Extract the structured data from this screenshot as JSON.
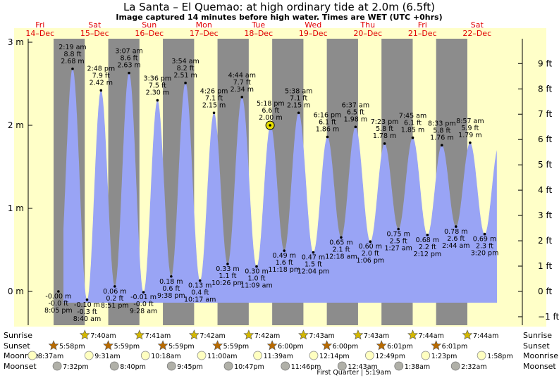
{
  "title": "La Santa – El Quemao: at high  ordinary tide at 2.0m (6.5ft)",
  "subtitle": "Image captured 14 minutes before high water. Times are WET (UTC +0hrs)",
  "days": [
    {
      "dow": "Fri",
      "date": "14–Dec"
    },
    {
      "dow": "Sat",
      "date": "15–Dec"
    },
    {
      "dow": "Sun",
      "date": "16–Dec"
    },
    {
      "dow": "Mon",
      "date": "17–Dec"
    },
    {
      "dow": "Tue",
      "date": "18–Dec"
    },
    {
      "dow": "Wed",
      "date": "19–Dec"
    },
    {
      "dow": "Thu",
      "date": "20–Dec"
    },
    {
      "dow": "Fri",
      "date": "21–Dec"
    },
    {
      "dow": "Sat",
      "date": "22–Dec"
    }
  ],
  "chart_data": {
    "type": "area",
    "unit_left": "m",
    "unit_right": "ft",
    "y_left_ticks": [
      "0 m",
      "1 m",
      "2 m",
      "3 m"
    ],
    "y_right_ticks": [
      "−1 ft",
      "0 ft",
      "1 ft",
      "2 ft",
      "3 ft",
      "4 ft",
      "5 ft",
      "6 ft",
      "7 ft",
      "8 ft",
      "9 ft"
    ],
    "ylim_m": [
      -0.5,
      3.0
    ],
    "x_start": "14-Dec 00:00",
    "colors": {
      "day": "#ffffc8",
      "night": "#8c8c8c",
      "water": "#99a4f5",
      "frame": "#ffffc8"
    },
    "extremes": [
      {
        "type": "low",
        "date": "14-Dec",
        "time": "8:05 pm",
        "m": "-0.00 m",
        "ft": "-0.0 ft"
      },
      {
        "type": "high",
        "date": "15-Dec",
        "time": "2:19 am",
        "m": "2.68 m",
        "ft": "8.8 ft"
      },
      {
        "type": "low",
        "date": "15-Dec",
        "time": "8:40 am",
        "m": "-0.10 m",
        "ft": "-0.3 ft"
      },
      {
        "type": "high",
        "date": "15-Dec",
        "time": "2:48 pm",
        "m": "2.42 m",
        "ft": "7.9 ft"
      },
      {
        "type": "low",
        "date": "15-Dec",
        "time": "8:51 pm",
        "m": "0.06 m",
        "ft": "0.2 ft"
      },
      {
        "type": "high",
        "date": "16-Dec",
        "time": "3:07 am",
        "m": "2.63 m",
        "ft": "8.6 ft"
      },
      {
        "type": "low",
        "date": "16-Dec",
        "time": "9:28 am",
        "m": "-0.01 m",
        "ft": "-0.0 ft"
      },
      {
        "type": "high",
        "date": "16-Dec",
        "time": "3:36 pm",
        "m": "2.30 m",
        "ft": "7.5 ft"
      },
      {
        "type": "low",
        "date": "16-Dec",
        "time": "9:38 pm",
        "m": "0.18 m",
        "ft": "0.6 ft"
      },
      {
        "type": "high",
        "date": "17-Dec",
        "time": "3:54 am",
        "m": "2.51 m",
        "ft": "8.2 ft"
      },
      {
        "type": "low",
        "date": "17-Dec",
        "time": "10:17 am",
        "m": "0.13 m",
        "ft": "0.4 ft"
      },
      {
        "type": "high",
        "date": "17-Dec",
        "time": "4:26 pm",
        "m": "2.15 m",
        "ft": "7.1 ft"
      },
      {
        "type": "low",
        "date": "17-Dec",
        "time": "10:26 pm",
        "m": "0.33 m",
        "ft": "1.1 ft"
      },
      {
        "type": "high",
        "date": "18-Dec",
        "time": "4:44 am",
        "m": "2.34 m",
        "ft": "7.7 ft"
      },
      {
        "type": "low",
        "date": "18-Dec",
        "time": "11:09 am",
        "m": "0.30 m",
        "ft": "1.0 ft"
      },
      {
        "type": "high",
        "date": "18-Dec",
        "time": "5:18 pm",
        "m": "2.00 m",
        "ft": "6.6 ft"
      },
      {
        "type": "low",
        "date": "18-Dec",
        "time": "11:18 pm",
        "m": "0.49 m",
        "ft": "1.6 ft"
      },
      {
        "type": "high",
        "date": "19-Dec",
        "time": "5:38 am",
        "m": "2.15 m",
        "ft": "7.1 ft"
      },
      {
        "type": "low",
        "date": "19-Dec",
        "time": "12:04 pm",
        "m": "0.47 m",
        "ft": "1.5 ft"
      },
      {
        "type": "high",
        "date": "19-Dec",
        "time": "6:16 pm",
        "m": "1.86 m",
        "ft": "6.1 ft"
      },
      {
        "type": "low",
        "date": "20-Dec",
        "time": "12:18 am",
        "m": "0.65 m",
        "ft": "2.1 ft"
      },
      {
        "type": "high",
        "date": "20-Dec",
        "time": "6:37 am",
        "m": "1.98 m",
        "ft": "6.5 ft"
      },
      {
        "type": "low",
        "date": "20-Dec",
        "time": "1:06 pm",
        "m": "0.60 m",
        "ft": "2.0 ft"
      },
      {
        "type": "high",
        "date": "20-Dec",
        "time": "7:23 pm",
        "m": "1.78 m",
        "ft": "5.8 ft"
      },
      {
        "type": "low",
        "date": "21-Dec",
        "time": "1:27 am",
        "m": "0.75 m",
        "ft": "2.5 ft"
      },
      {
        "type": "high",
        "date": "21-Dec",
        "time": "7:45 am",
        "m": "1.85 m",
        "ft": "6.1 ft"
      },
      {
        "type": "low",
        "date": "21-Dec",
        "time": "2:12 pm",
        "m": "0.68 m",
        "ft": "2.2 ft"
      },
      {
        "type": "high",
        "date": "21-Dec",
        "time": "8:33 pm",
        "m": "1.76 m",
        "ft": "5.8 ft"
      },
      {
        "type": "low",
        "date": "22-Dec",
        "time": "2:44 am",
        "m": "0.78 m",
        "ft": "2.6 ft"
      },
      {
        "type": "high",
        "date": "22-Dec",
        "time": "8:57 am",
        "m": "1.79 m",
        "ft": "5.9 ft"
      },
      {
        "type": "low",
        "date": "22-Dec",
        "time": "3:20 pm",
        "m": "0.69 m",
        "ft": "2.3 ft"
      }
    ],
    "current": {
      "date": "18-Dec",
      "time": "5:04 pm",
      "m": 2.0
    },
    "sunrise": [
      {
        "date": "15-Dec",
        "time": "7:40am"
      },
      {
        "date": "16-Dec",
        "time": "7:41am"
      },
      {
        "date": "17-Dec",
        "time": "7:42am"
      },
      {
        "date": "18-Dec",
        "time": "7:42am"
      },
      {
        "date": "19-Dec",
        "time": "7:43am"
      },
      {
        "date": "20-Dec",
        "time": "7:43am"
      },
      {
        "date": "21-Dec",
        "time": "7:44am"
      },
      {
        "date": "22-Dec",
        "time": "7:44am"
      }
    ],
    "sunset": [
      {
        "date": "14-Dec",
        "time": "5:58pm"
      },
      {
        "date": "15-Dec",
        "time": "5:59pm"
      },
      {
        "date": "16-Dec",
        "time": "5:59pm"
      },
      {
        "date": "17-Dec",
        "time": "5:59pm"
      },
      {
        "date": "18-Dec",
        "time": "6:00pm"
      },
      {
        "date": "19-Dec",
        "time": "6:00pm"
      },
      {
        "date": "20-Dec",
        "time": "6:01pm"
      },
      {
        "date": "21-Dec",
        "time": "6:01pm"
      }
    ],
    "moonrise": [
      {
        "date": "14-Dec",
        "time": "8:37am"
      },
      {
        "date": "15-Dec",
        "time": "9:31am"
      },
      {
        "date": "16-Dec",
        "time": "10:18am"
      },
      {
        "date": "17-Dec",
        "time": "11:00am"
      },
      {
        "date": "18-Dec",
        "time": "11:39am"
      },
      {
        "date": "19-Dec",
        "time": "12:14pm"
      },
      {
        "date": "20-Dec",
        "time": "12:49pm"
      },
      {
        "date": "21-Dec",
        "time": "1:23pm"
      },
      {
        "date": "22-Dec",
        "time": "1:58pm"
      }
    ],
    "moonset": [
      {
        "date": "14-Dec",
        "time": "7:32pm"
      },
      {
        "date": "15-Dec",
        "time": "8:40pm"
      },
      {
        "date": "16-Dec",
        "time": "9:45pm"
      },
      {
        "date": "17-Dec",
        "time": "10:47pm"
      },
      {
        "date": "18-Dec",
        "time": "11:46pm"
      },
      {
        "date": "20-Dec",
        "time": "12:43am"
      },
      {
        "date": "21-Dec",
        "time": "1:38am"
      },
      {
        "date": "22-Dec",
        "time": "2:32am"
      }
    ],
    "moon_phase": "First Quarter | 5:19am"
  },
  "row_labels": {
    "sunrise": "Sunrise",
    "sunset": "Sunset",
    "moonrise": "Moonrise",
    "moonset": "Moonset"
  }
}
